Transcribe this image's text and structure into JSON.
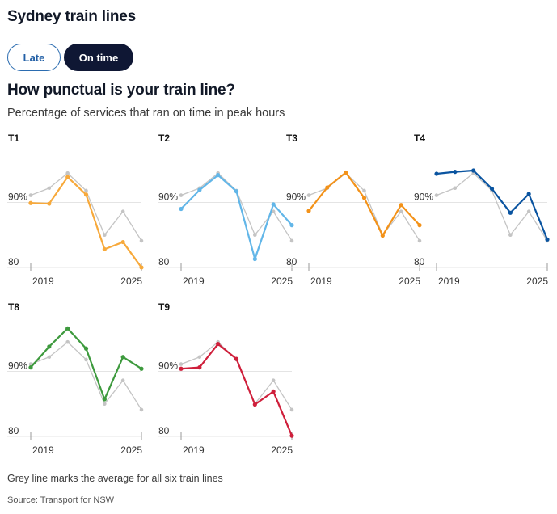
{
  "header": {
    "title": "Sydney train lines"
  },
  "toggle": {
    "late_label": "Late",
    "ontime_label": "On time",
    "selected": "On time"
  },
  "chart_title": "How punctual is your train line?",
  "chart_subtitle": "Percentage of services that ran on time in peak hours",
  "footnote": "Grey line marks the average for all six train lines",
  "source": "Source: Transport for NSW",
  "colors": {
    "average": "#c4c4c4",
    "T1": "#f7a93b",
    "T2": "#62b6e8",
    "T3": "#f39219",
    "T4": "#0a54a0",
    "T8": "#3e9a3e",
    "T9": "#cf1f3b",
    "gridline": "#e4e4e4"
  },
  "chart_data": {
    "type": "line",
    "x": [
      2019,
      2020,
      2021,
      2022,
      2023,
      2024,
      2025
    ],
    "x_tick_labels": [
      "2019",
      "2025"
    ],
    "y_ticks": [
      80,
      90
    ],
    "y_tick_labels": [
      "80",
      "90%"
    ],
    "ylim": [
      79,
      99
    ],
    "average": [
      91.1,
      92.2,
      94.5,
      91.8,
      85.0,
      88.6,
      84.1
    ],
    "panels": [
      {
        "label": "T1",
        "values": [
          89.9,
          89.8,
          93.9,
          91.2,
          82.8,
          83.9,
          80.0
        ]
      },
      {
        "label": "T2",
        "values": [
          89.0,
          91.9,
          94.2,
          91.7,
          81.3,
          89.7,
          86.5
        ]
      },
      {
        "label": "T3",
        "values": [
          88.7,
          92.3,
          94.6,
          90.7,
          84.9,
          89.6,
          86.5
        ]
      },
      {
        "label": "T4",
        "values": [
          94.4,
          94.7,
          94.9,
          92.1,
          88.4,
          91.3,
          84.3
        ]
      },
      {
        "label": "T8",
        "values": [
          90.6,
          93.8,
          96.6,
          93.5,
          85.7,
          92.2,
          90.4
        ]
      },
      {
        "label": "T9",
        "values": [
          90.4,
          90.6,
          94.2,
          91.9,
          84.9,
          86.9,
          80.1
        ]
      }
    ]
  }
}
